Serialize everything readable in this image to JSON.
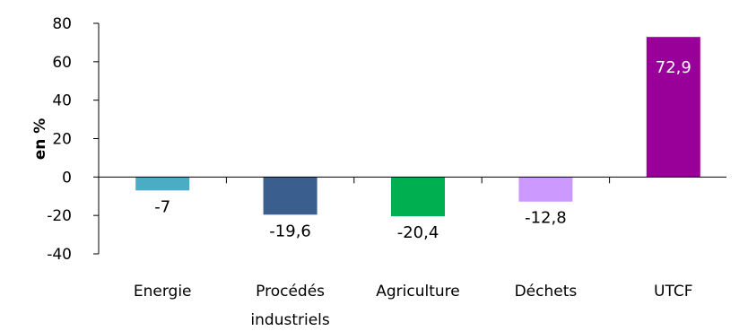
{
  "chart_data": {
    "type": "bar",
    "ylabel": "en %",
    "ylim": [
      -40,
      80
    ],
    "yticks": [
      80,
      60,
      40,
      20,
      0,
      -20,
      -40
    ],
    "grid": false,
    "legend": "none",
    "categories": [
      {
        "lines": [
          "Energie"
        ]
      },
      {
        "lines": [
          "Procédés",
          "industriels"
        ]
      },
      {
        "lines": [
          "Agriculture"
        ]
      },
      {
        "lines": [
          "Déchets"
        ]
      },
      {
        "lines": [
          "UTCF"
        ]
      }
    ],
    "values": [
      -7,
      -19.6,
      -20.4,
      -12.8,
      72.9
    ],
    "value_labels": [
      "-7",
      "-19,6",
      "-20,4",
      "-12,8",
      "72,9"
    ],
    "colors": [
      "#4bacc6",
      "#3a5f8f",
      "#00b050",
      "#cc99ff",
      "#990099"
    ]
  }
}
